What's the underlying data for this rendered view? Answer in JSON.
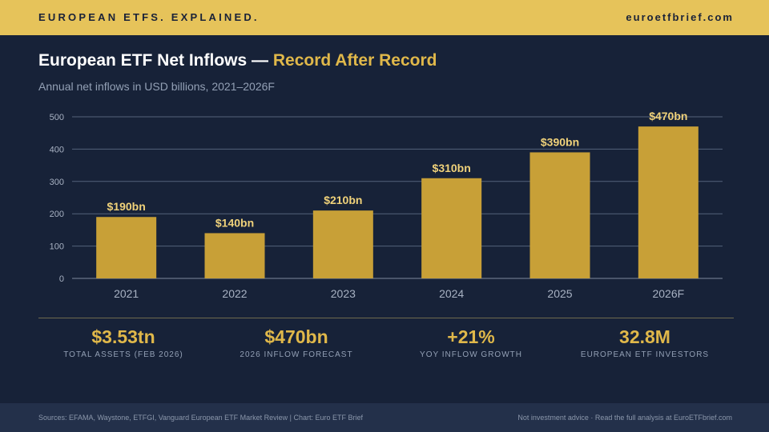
{
  "header": {
    "tagline": "EUROPEAN ETFS. EXPLAINED.",
    "site": "euroetfbrief.com"
  },
  "title": {
    "main": "European ETF Net Inflows — ",
    "accent": "Record After Record"
  },
  "subtitle": "Annual net inflows in USD billions, 2021–2026F",
  "colors": {
    "accent": "#e0b84a",
    "bar": "#c8a037",
    "background": "#172238",
    "grid": "#55627a"
  },
  "chart_data": {
    "type": "bar",
    "categories": [
      "2021",
      "2022",
      "2023",
      "2024",
      "2025",
      "2026F"
    ],
    "values": [
      190,
      140,
      210,
      310,
      390,
      470
    ],
    "data_labels": [
      "$190bn",
      "$140bn",
      "$210bn",
      "$310bn",
      "$390bn",
      "$470bn"
    ],
    "yticks": [
      0,
      100,
      200,
      300,
      400,
      500
    ],
    "ylim": [
      0,
      500
    ],
    "title": "European ETF Net Inflows — Record After Record",
    "xlabel": "",
    "ylabel": "",
    "grid": true
  },
  "stats": [
    {
      "value": "$3.53tn",
      "label": "TOTAL ASSETS (FEB 2026)"
    },
    {
      "value": "$470bn",
      "label": "2026 INFLOW FORECAST"
    },
    {
      "value": "+21%",
      "label": "YOY INFLOW GROWTH"
    },
    {
      "value": "32.8M",
      "label": "EUROPEAN ETF INVESTORS"
    }
  ],
  "footer": {
    "sources": "Sources: EFAMA, Waystone, ETFGI, Vanguard European ETF Market Review  |  Chart: Euro ETF Brief",
    "note": "Not investment advice · Read the full analysis at EuroETFbrief.com"
  }
}
